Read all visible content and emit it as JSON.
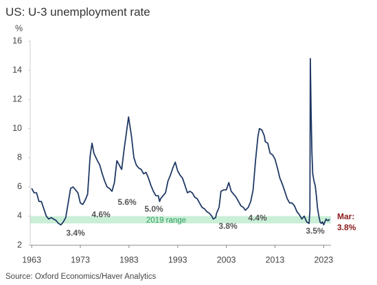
{
  "chart_data": {
    "type": "line",
    "title": "US: U-3 unemployment rate",
    "y_unit": "%",
    "source": "Source: Oxford Economics/Haver Analytics",
    "xlim": [
      1962.7,
      2024.5
    ],
    "xticks": [
      1963,
      1973,
      1983,
      1993,
      2003,
      2013,
      2023
    ],
    "ylim": [
      2,
      16
    ],
    "yticks": [
      2,
      4,
      6,
      8,
      10,
      12,
      14,
      16
    ],
    "grid": false,
    "band": {
      "label": "2019 range",
      "range": [
        3.5,
        4.0
      ],
      "color": "#c9efd7"
    },
    "series": [
      {
        "name": "U-3 unemployment rate",
        "color": "#1f3864",
        "x": [
          1963.0,
          1963.5,
          1964.0,
          1964.5,
          1965.0,
          1965.5,
          1966.0,
          1966.5,
          1967.0,
          1967.5,
          1968.0,
          1968.5,
          1969.0,
          1969.5,
          1970.0,
          1970.5,
          1971.0,
          1971.5,
          1972.0,
          1972.5,
          1973.0,
          1973.5,
          1974.0,
          1974.5,
          1975.0,
          1975.4,
          1975.8,
          1976.5,
          1977.0,
          1977.5,
          1978.0,
          1978.5,
          1979.0,
          1979.5,
          1980.0,
          1980.5,
          1981.0,
          1981.5,
          1982.0,
          1982.5,
          1982.9,
          1983.5,
          1984.0,
          1984.5,
          1985.0,
          1985.5,
          1986.0,
          1986.5,
          1987.0,
          1987.5,
          1988.0,
          1988.5,
          1989.0,
          1989.3,
          1989.5,
          1990.0,
          1990.5,
          1991.0,
          1991.5,
          1992.0,
          1992.5,
          1993.0,
          1993.5,
          1994.0,
          1994.5,
          1995.0,
          1995.5,
          1996.0,
          1996.5,
          1997.0,
          1997.5,
          1998.0,
          1998.5,
          1999.0,
          1999.5,
          2000.0,
          2000.3,
          2000.8,
          2001.0,
          2001.5,
          2001.9,
          2002.5,
          2003.0,
          2003.5,
          2004.0,
          2004.5,
          2005.0,
          2005.5,
          2006.0,
          2006.5,
          2006.9,
          2007.5,
          2008.0,
          2008.5,
          2009.0,
          2009.5,
          2009.8,
          2010.3,
          2010.8,
          2011.0,
          2011.5,
          2012.0,
          2012.5,
          2013.0,
          2013.5,
          2014.0,
          2014.5,
          2015.0,
          2015.5,
          2016.0,
          2016.5,
          2017.0,
          2017.5,
          2018.0,
          2018.5,
          2019.0,
          2019.5,
          2020.0,
          2020.17,
          2020.25,
          2020.42,
          2020.58,
          2020.75,
          2021.0,
          2021.25,
          2021.5,
          2021.75,
          2022.0,
          2022.25,
          2022.5,
          2022.75,
          2023.0,
          2023.25,
          2023.5,
          2023.75,
          2024.0,
          2024.17
        ],
        "values": [
          5.9,
          5.6,
          5.6,
          5.0,
          5.0,
          4.5,
          4.0,
          3.8,
          3.9,
          3.8,
          3.7,
          3.5,
          3.4,
          3.6,
          3.9,
          4.9,
          5.9,
          6.0,
          5.8,
          5.6,
          4.9,
          4.8,
          5.1,
          5.5,
          8.1,
          9.0,
          8.3,
          7.8,
          7.5,
          6.9,
          6.4,
          6.0,
          5.9,
          5.7,
          6.3,
          7.8,
          7.5,
          7.2,
          8.6,
          9.8,
          10.8,
          9.5,
          8.0,
          7.5,
          7.3,
          7.2,
          6.9,
          7.0,
          6.6,
          6.1,
          5.7,
          5.4,
          5.4,
          5.0,
          5.2,
          5.4,
          5.6,
          6.4,
          6.8,
          7.3,
          7.7,
          7.1,
          6.8,
          6.6,
          6.1,
          5.6,
          5.7,
          5.6,
          5.3,
          5.2,
          4.9,
          4.6,
          4.5,
          4.3,
          4.2,
          4.0,
          3.8,
          3.9,
          4.2,
          4.6,
          5.7,
          5.8,
          5.8,
          6.3,
          5.7,
          5.5,
          5.3,
          5.0,
          4.7,
          4.6,
          4.4,
          4.6,
          5.0,
          5.8,
          7.8,
          9.5,
          10.0,
          9.9,
          9.5,
          9.1,
          9.0,
          8.3,
          8.2,
          7.9,
          7.3,
          6.6,
          6.2,
          5.7,
          5.2,
          4.9,
          4.9,
          4.7,
          4.3,
          4.1,
          3.8,
          4.0,
          3.6,
          3.5,
          4.4,
          14.8,
          11.0,
          8.4,
          6.9,
          6.4,
          6.1,
          5.4,
          4.5,
          4.0,
          3.6,
          3.5,
          3.6,
          3.4,
          3.6,
          3.8,
          3.7,
          3.7,
          3.8
        ]
      }
    ],
    "annotations": [
      "3.4%",
      "4.6%",
      "5.6%",
      "5.0%",
      "3.8%",
      "4.4%",
      "3.5%"
    ],
    "end_label": [
      "Mar:",
      "3.8%"
    ]
  }
}
